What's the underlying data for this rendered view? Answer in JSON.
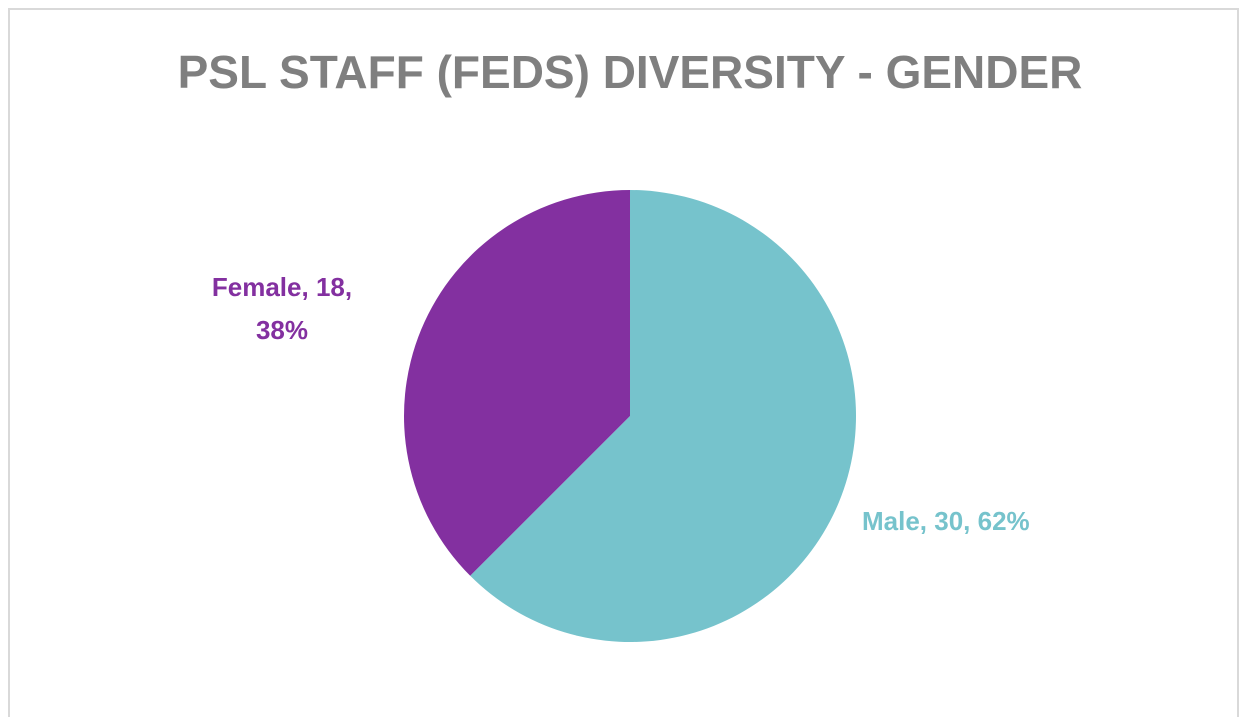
{
  "chart_data": {
    "type": "pie",
    "title": "PSL STAFF (FEDS) DIVERSITY - GENDER",
    "categories": [
      "Male",
      "Female"
    ],
    "values": [
      30,
      18
    ],
    "value_labels": [
      "Male, 30, 62%",
      "Female, 18, 38%"
    ],
    "colors": [
      "#76c3cc",
      "#8330a0"
    ]
  }
}
